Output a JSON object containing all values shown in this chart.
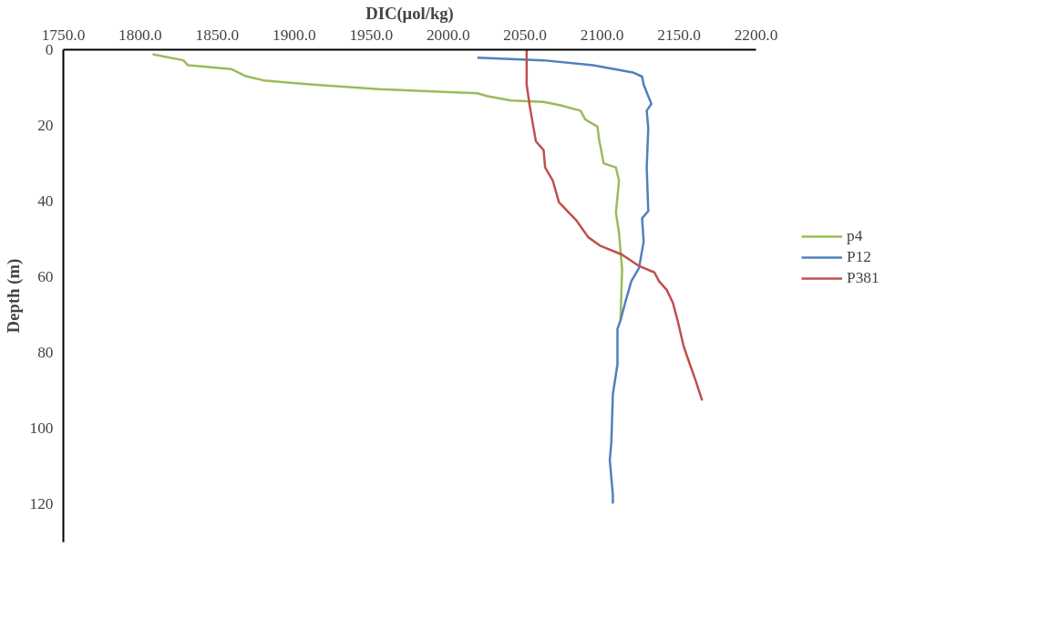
{
  "chart_data": {
    "type": "line",
    "xlabel": "DIC(μol/kg)",
    "ylabel": "Depth (m)",
    "xlim": [
      1750,
      2200
    ],
    "ylim": [
      130,
      0
    ],
    "xticks": [
      {
        "value": 1750,
        "label": "1750.0"
      },
      {
        "value": 1800,
        "label": "1800.0"
      },
      {
        "value": 1850,
        "label": "1850.0"
      },
      {
        "value": 1900,
        "label": "1900.0"
      },
      {
        "value": 1950,
        "label": "1950.0"
      },
      {
        "value": 2000,
        "label": "2000.0"
      },
      {
        "value": 2050,
        "label": "2050.0"
      },
      {
        "value": 2100,
        "label": "2100.0"
      },
      {
        "value": 2150,
        "label": "2150.0"
      },
      {
        "value": 2200,
        "label": "2200.0"
      }
    ],
    "yticks": [
      0,
      20,
      40,
      60,
      80,
      100,
      120
    ],
    "grid": false,
    "legend": "right",
    "marker": "none",
    "line_style": "solid",
    "series": [
      {
        "name": "p4",
        "color": "#9bbb59",
        "x": [
          1808,
          1828,
          1831,
          1859,
          1868,
          1880,
          1912,
          1955,
          2019,
          2025,
          2041,
          2062,
          2073,
          2086,
          2089,
          2097,
          2098,
          2101,
          2109,
          2111,
          2109,
          2111,
          2113,
          2112
        ],
        "values": [
          1.2,
          2.8,
          4.1,
          5.1,
          6.9,
          8.1,
          9.2,
          10.4,
          11.5,
          12.2,
          13.4,
          13.8,
          14.7,
          16.1,
          18.4,
          20.3,
          23.5,
          30,
          31.1,
          34.6,
          43,
          48.4,
          58,
          71.4
        ]
      },
      {
        "name": "P12",
        "color": "#4f81bd",
        "x": [
          2019,
          2062,
          2094,
          2120,
          2126,
          2127,
          2132,
          2129,
          2130,
          2129,
          2130,
          2126,
          2127,
          2124,
          2119,
          2115,
          2112,
          2110,
          2110,
          2107,
          2106,
          2105,
          2107,
          2107
        ],
        "values": [
          2.1,
          2.8,
          4.1,
          6,
          7.1,
          9.2,
          14.3,
          16.1,
          20.7,
          31.1,
          42.6,
          44.5,
          50.7,
          57.6,
          61.1,
          66.8,
          71.4,
          73.7,
          83,
          91,
          103.7,
          108.3,
          117.5,
          119.8
        ]
      },
      {
        "name": "P381",
        "color": "#c0504d",
        "x": [
          2051,
          2051,
          2053,
          2057,
          2062,
          2063,
          2068,
          2072,
          2083,
          2091,
          2099,
          2113,
          2124,
          2134,
          2137,
          2142,
          2146,
          2149,
          2153,
          2157,
          2161,
          2165
        ],
        "values": [
          0,
          9.2,
          14.9,
          24.2,
          26.5,
          31.1,
          34.6,
          40.3,
          44.9,
          49.5,
          51.8,
          54.1,
          57.1,
          58.8,
          61.1,
          63.4,
          66.8,
          71.4,
          78.3,
          83,
          87.6,
          92.6
        ]
      }
    ]
  }
}
